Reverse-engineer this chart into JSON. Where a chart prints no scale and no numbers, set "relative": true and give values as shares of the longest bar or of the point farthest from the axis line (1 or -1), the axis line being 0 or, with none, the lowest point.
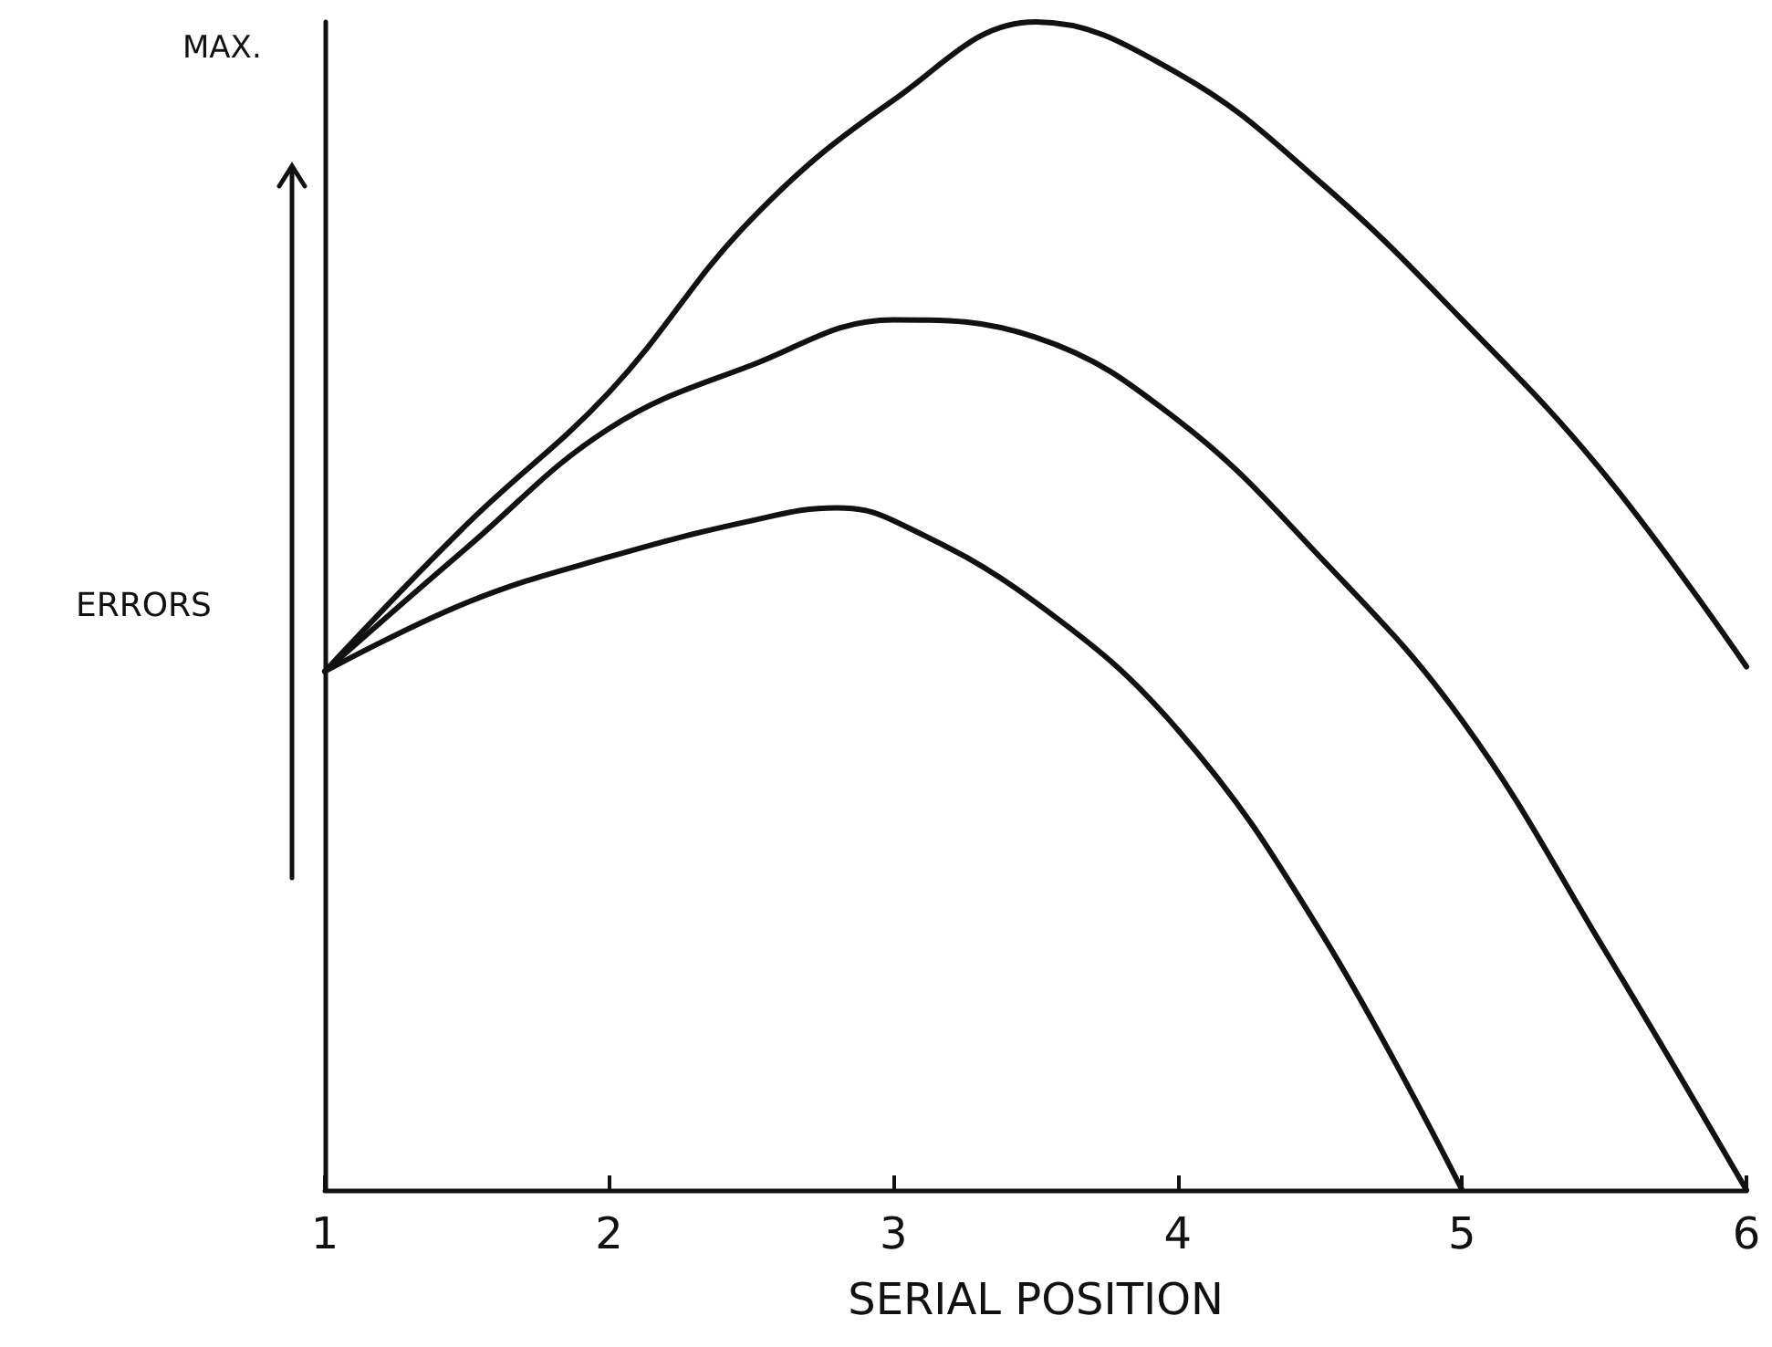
{
  "chart_data": {
    "type": "line",
    "xlabel": "SERIAL POSITION",
    "ylabel": "ERRORS",
    "annotations": [
      "MAX."
    ],
    "relative": true,
    "x": [
      1,
      1.5,
      2,
      2.5,
      3,
      3.5,
      4,
      4.5,
      5,
      5.5,
      6
    ],
    "xlim": [
      1,
      6
    ],
    "xticks": [
      1,
      2,
      3,
      4,
      5,
      6
    ],
    "grid": false,
    "marker": "none",
    "line_style": "solid",
    "series": [
      {
        "color": "#111111",
        "values": [
          0.444,
          0.57,
          0.683,
          0.831,
          0.933,
          1.0,
          0.956,
          0.863,
          0.745,
          0.613,
          0.448
        ]
      },
      {
        "color": "#111111",
        "values": [
          0.444,
          0.55,
          0.652,
          0.706,
          0.745,
          0.73,
          0.659,
          0.542,
          0.402,
          0.206,
          0.0
        ]
      },
      {
        "color": "#111111",
        "x": [
          1,
          1.5,
          2,
          2.5,
          2.8,
          3,
          3.5,
          4,
          4.5,
          5
        ],
        "values": [
          0.444,
          0.503,
          0.542,
          0.573,
          0.584,
          0.573,
          0.503,
          0.394,
          0.222,
          0.0
        ]
      }
    ]
  }
}
